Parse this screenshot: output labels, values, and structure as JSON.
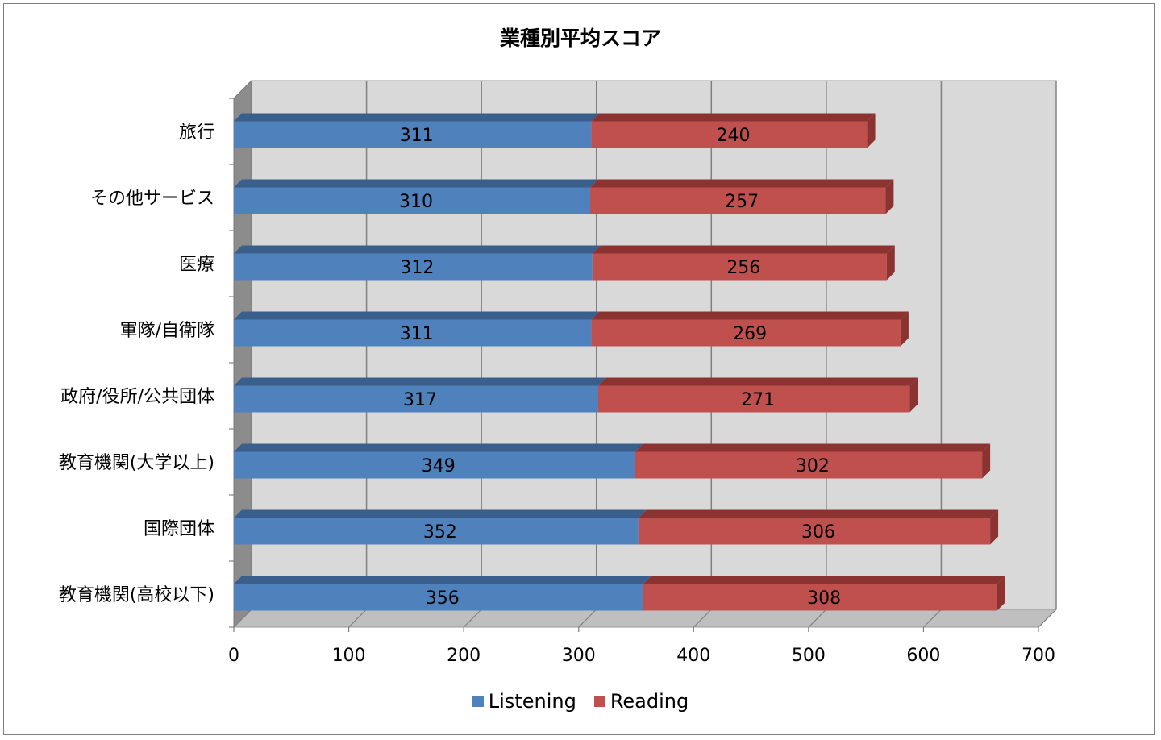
{
  "chart_data": {
    "type": "bar",
    "orientation": "horizontal",
    "stacked": true,
    "three_d": true,
    "title": "業種別平均スコア",
    "categories": [
      "旅行",
      "その他サービス",
      "医療",
      "軍隊/自衛隊",
      "政府/役所/公共団体",
      "教育機関(大学以上)",
      "国際団体",
      "教育機関(高校以下)"
    ],
    "series": [
      {
        "name": "Listening",
        "color": "#4f81bd",
        "side_color": "#3a5f8c",
        "values": [
          311,
          310,
          312,
          311,
          317,
          349,
          352,
          356
        ]
      },
      {
        "name": "Reading",
        "color": "#c0504d",
        "side_color": "#8b3331",
        "values": [
          240,
          257,
          256,
          269,
          271,
          302,
          306,
          308
        ]
      }
    ],
    "xlim": [
      0,
      700
    ],
    "xticks": [
      0,
      100,
      200,
      300,
      400,
      500,
      600,
      700
    ],
    "grid": true,
    "legend_position": "bottom",
    "data_labels": true
  }
}
